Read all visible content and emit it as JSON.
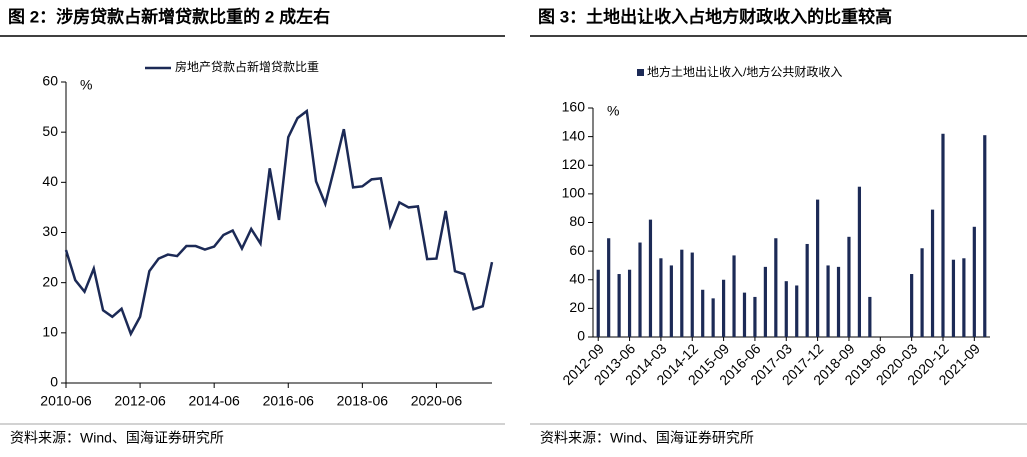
{
  "chart_data": [
    {
      "type": "line",
      "title": "图 2：涉房贷款占新增贷款比重的 2 成左右",
      "source": "资料来源：Wind、国海证券研究所",
      "y_unit": "%",
      "categories": [
        "2010-06",
        null,
        null,
        null,
        null,
        null,
        null,
        null,
        "2012-06",
        null,
        null,
        null,
        null,
        null,
        null,
        null,
        "2014-06",
        null,
        null,
        null,
        null,
        null,
        null,
        null,
        "2016-06",
        null,
        null,
        null,
        null,
        null,
        null,
        null,
        "2018-06",
        null,
        null,
        null,
        null,
        null,
        null,
        null,
        "2020-06",
        null,
        null,
        null,
        null,
        null,
        null
      ],
      "series": [
        {
          "name": "房地产贷款占新增贷款比重",
          "color": "#1c2a56",
          "values": [
            26.5,
            20.5,
            18.2,
            22.8,
            14.5,
            13.2,
            14.8,
            9.8,
            13.2,
            22.3,
            24.8,
            25.6,
            25.3,
            27.3,
            27.3,
            26.6,
            27.2,
            29.5,
            30.4,
            26.8,
            30.7,
            27.8,
            42.8,
            32.5,
            49,
            52.8,
            54.2,
            40.2,
            35.7,
            43,
            50.6,
            39,
            39.2,
            40.6,
            40.8,
            31.3,
            36,
            35,
            35.2,
            24.7,
            24.8,
            34.3,
            22.3,
            21.7,
            14.7,
            15.3,
            24.1
          ]
        }
      ],
      "ylim": [
        0,
        60
      ],
      "yticks": [
        0,
        10,
        20,
        30,
        40,
        50,
        60
      ],
      "grid": false
    },
    {
      "type": "bar",
      "title": "图 3：土地出让收入占地方财政收入的比重较高",
      "source": "资料来源：Wind、国海证券研究所",
      "y_unit": "%",
      "categories": [
        "2012-09",
        null,
        null,
        "2013-06",
        null,
        null,
        "2014-03",
        null,
        null,
        "2014-12",
        null,
        null,
        "2015-09",
        null,
        null,
        "2016-06",
        null,
        null,
        "2017-03",
        null,
        null,
        "2017-12",
        null,
        null,
        "2018-09",
        null,
        null,
        "2019-06",
        null,
        null,
        "2020-03",
        null,
        null,
        "2020-12",
        null,
        null,
        "2021-09",
        null
      ],
      "series": [
        {
          "name": "地方土地出让收入/地方公共财政收入",
          "color": "#1c2a56",
          "values": [
            47,
            69,
            44,
            47,
            66,
            82,
            55,
            50,
            61,
            59,
            33,
            27,
            40,
            57,
            31,
            28,
            49,
            69,
            39,
            36,
            65,
            96,
            50,
            49,
            70,
            105,
            28,
            null,
            null,
            null,
            44,
            62,
            89,
            142,
            54,
            55,
            77,
            141
          ]
        }
      ],
      "ylim": [
        0,
        160
      ],
      "yticks": [
        0,
        20,
        40,
        60,
        80,
        100,
        120,
        140,
        160
      ],
      "grid": false
    }
  ]
}
